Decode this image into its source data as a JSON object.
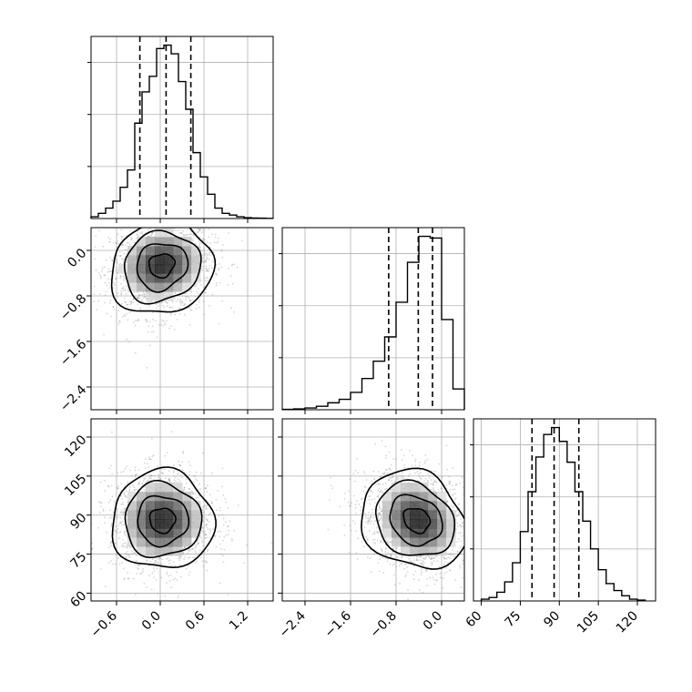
{
  "chart_data": {
    "type": "corner",
    "grid": true,
    "parameters": [
      {
        "id": "p0",
        "range": [
          -0.95,
          1.55
        ],
        "ticks": [
          -0.6,
          0.0,
          0.6,
          1.2
        ],
        "tick_labels": [
          "−0.6",
          "0.0",
          "0.6",
          "1.2"
        ]
      },
      {
        "id": "p1",
        "range": [
          -2.8,
          0.4
        ],
        "ticks": [
          -2.4,
          -1.6,
          -0.8,
          0.0
        ],
        "tick_labels": [
          "−2.4",
          "−1.6",
          "−0.8",
          "0.0"
        ]
      },
      {
        "id": "p2",
        "range": [
          57,
          127
        ],
        "ticks": [
          60,
          75,
          90,
          105,
          120
        ],
        "tick_labels": [
          "60",
          "75",
          "90",
          "105",
          "120"
        ]
      }
    ],
    "histograms": [
      {
        "param": "p0",
        "bin_edges": [
          -0.95,
          -0.85,
          -0.75,
          -0.65,
          -0.55,
          -0.45,
          -0.35,
          -0.25,
          -0.15,
          -0.05,
          0.05,
          0.15,
          0.25,
          0.35,
          0.45,
          0.55,
          0.65,
          0.75,
          0.85,
          0.95,
          1.05,
          1.15,
          1.25,
          1.35,
          1.45,
          1.55
        ],
        "counts": [
          0.01,
          0.03,
          0.06,
          0.1,
          0.18,
          0.28,
          0.55,
          0.73,
          0.82,
          0.98,
          1.0,
          0.95,
          0.79,
          0.63,
          0.38,
          0.24,
          0.14,
          0.06,
          0.03,
          0.02,
          0.01,
          0.005,
          0.003,
          0.002,
          0.001
        ],
        "quantiles": [
          -0.28,
          0.08,
          0.42
        ]
      },
      {
        "param": "p1",
        "bin_edges": [
          -2.8,
          -2.6,
          -2.4,
          -2.2,
          -2.0,
          -1.8,
          -1.6,
          -1.4,
          -1.2,
          -1.0,
          -0.8,
          -0.6,
          -0.4,
          -0.2,
          0.0,
          0.2,
          0.4
        ],
        "counts": [
          0.002,
          0.005,
          0.01,
          0.02,
          0.04,
          0.06,
          0.1,
          0.18,
          0.28,
          0.42,
          0.62,
          0.85,
          1.0,
          0.99,
          0.52,
          0.12
        ],
        "quantiles": [
          -0.93,
          -0.41,
          -0.16
        ]
      },
      {
        "param": "p2",
        "bin_edges": [
          60,
          63,
          66,
          69,
          72,
          75,
          78,
          81,
          84,
          87,
          90,
          93,
          96,
          99,
          102,
          105,
          108,
          111,
          114,
          117,
          120,
          123
        ],
        "counts": [
          0.01,
          0.02,
          0.05,
          0.11,
          0.22,
          0.4,
          0.63,
          0.83,
          0.96,
          1.0,
          0.92,
          0.8,
          0.63,
          0.46,
          0.3,
          0.18,
          0.1,
          0.06,
          0.03,
          0.01,
          0.005
        ],
        "quantiles": [
          79.5,
          88.0,
          97.5
        ]
      }
    ],
    "joint": [
      {
        "x": "p0",
        "y": "p1",
        "center": [
          0.02,
          -0.25
        ],
        "sx": 0.35,
        "sy": 0.38,
        "rho": 0.1,
        "skew_y": 0.35,
        "contour_levels_sigma": [
          0.5,
          1.0,
          1.5,
          2.0
        ]
      },
      {
        "x": "p0",
        "y": "p2",
        "center": [
          0.03,
          88.0
        ],
        "sx": 0.35,
        "sy": 9.5,
        "rho": 0.0,
        "skew_y": 0.0,
        "contour_levels_sigma": [
          0.5,
          1.0,
          1.5,
          2.0
        ]
      },
      {
        "x": "p1",
        "y": "p2",
        "center": [
          -0.42,
          88.0
        ],
        "sx": 0.42,
        "sy": 9.5,
        "rho": -0.18,
        "skew_x": 0.4,
        "contour_levels_sigma": [
          0.5,
          1.0,
          1.5,
          2.0
        ]
      }
    ]
  }
}
